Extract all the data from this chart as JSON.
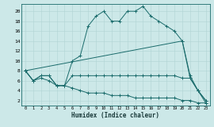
{
  "xlabel": "Humidex (Indice chaleur)",
  "xlim": [
    -0.5,
    23.5
  ],
  "ylim": [
    1,
    21.5
  ],
  "xticks": [
    0,
    1,
    2,
    3,
    4,
    5,
    6,
    7,
    8,
    9,
    10,
    11,
    12,
    13,
    14,
    15,
    16,
    17,
    18,
    19,
    20,
    21,
    22,
    23
  ],
  "yticks": [
    2,
    4,
    6,
    8,
    10,
    12,
    14,
    16,
    18,
    20
  ],
  "bg_color": "#cce8e8",
  "line_color": "#1a6b6b",
  "line1_x": [
    0,
    1,
    2,
    3,
    4,
    5,
    6,
    7,
    8,
    9,
    10,
    11,
    12,
    13,
    14,
    15,
    16,
    17,
    18,
    19,
    20,
    21,
    22,
    23
  ],
  "line1_y": [
    8,
    6,
    7,
    7,
    5,
    5,
    10,
    11,
    17,
    19,
    20,
    18,
    18,
    20,
    20,
    21,
    19,
    18,
    17,
    16,
    14,
    7,
    4,
    1.5
  ],
  "line2_x": [
    0,
    1,
    2,
    3,
    4,
    5,
    6,
    7,
    8,
    9,
    10,
    11,
    12,
    13,
    14,
    15,
    16,
    17,
    18,
    19,
    20,
    21,
    22,
    23
  ],
  "line2_y": [
    8,
    6,
    7,
    7,
    5,
    5,
    7,
    7,
    7,
    7,
    7,
    7,
    7,
    7,
    7,
    7,
    7,
    7,
    7,
    7,
    6.5,
    6.5,
    4,
    2
  ],
  "line3_x": [
    0,
    20,
    21,
    22,
    23
  ],
  "line3_y": [
    8,
    14,
    6.5,
    4,
    2
  ],
  "line4_x": [
    0,
    1,
    2,
    3,
    4,
    5,
    6,
    7,
    8,
    9,
    10,
    11,
    12,
    13,
    14,
    15,
    16,
    17,
    18,
    19,
    20,
    21,
    22,
    23
  ],
  "line4_y": [
    8,
    6,
    6.5,
    6,
    5,
    5,
    4.5,
    4,
    3.5,
    3.5,
    3.5,
    3,
    3,
    3,
    2.5,
    2.5,
    2.5,
    2.5,
    2.5,
    2.5,
    2,
    2,
    1.5,
    1.5
  ]
}
